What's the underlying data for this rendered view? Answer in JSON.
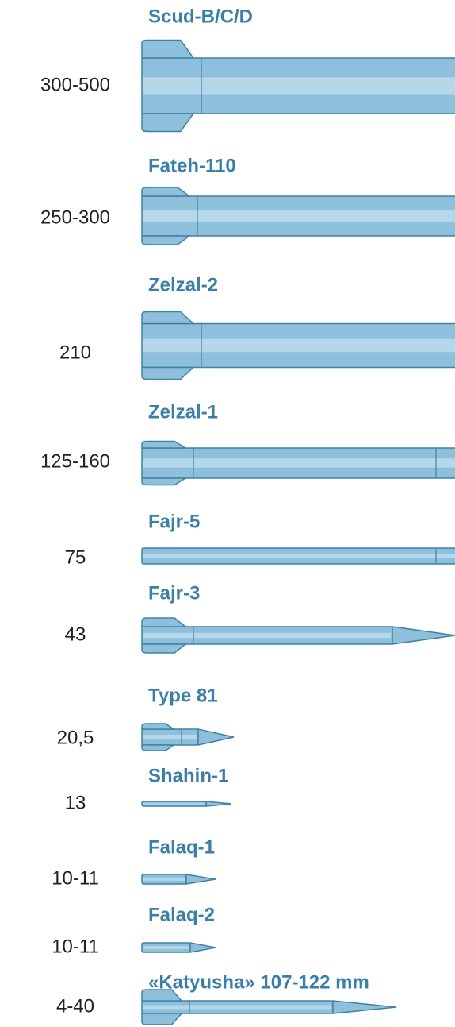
{
  "items": [
    {
      "name": "Scud-B/C/D",
      "range": "300-500"
    },
    {
      "name": "Fateh-110",
      "range": "250-300"
    },
    {
      "name": "Zelzal-2",
      "range": "210"
    },
    {
      "name": "Zelzal-1",
      "range": "125-160"
    },
    {
      "name": "Fajr-5",
      "range": "75"
    },
    {
      "name": "Fajr-3",
      "range": "43"
    },
    {
      "name": "Type 81",
      "range": "20,5"
    },
    {
      "name": "Shahin-1",
      "range": "13"
    },
    {
      "name": "Falaq-1",
      "range": "10-11"
    },
    {
      "name": "Falaq-2",
      "range": "10-11"
    },
    {
      "name": "«Katyusha» 107-122 mm",
      "range": "4-40"
    }
  ]
}
